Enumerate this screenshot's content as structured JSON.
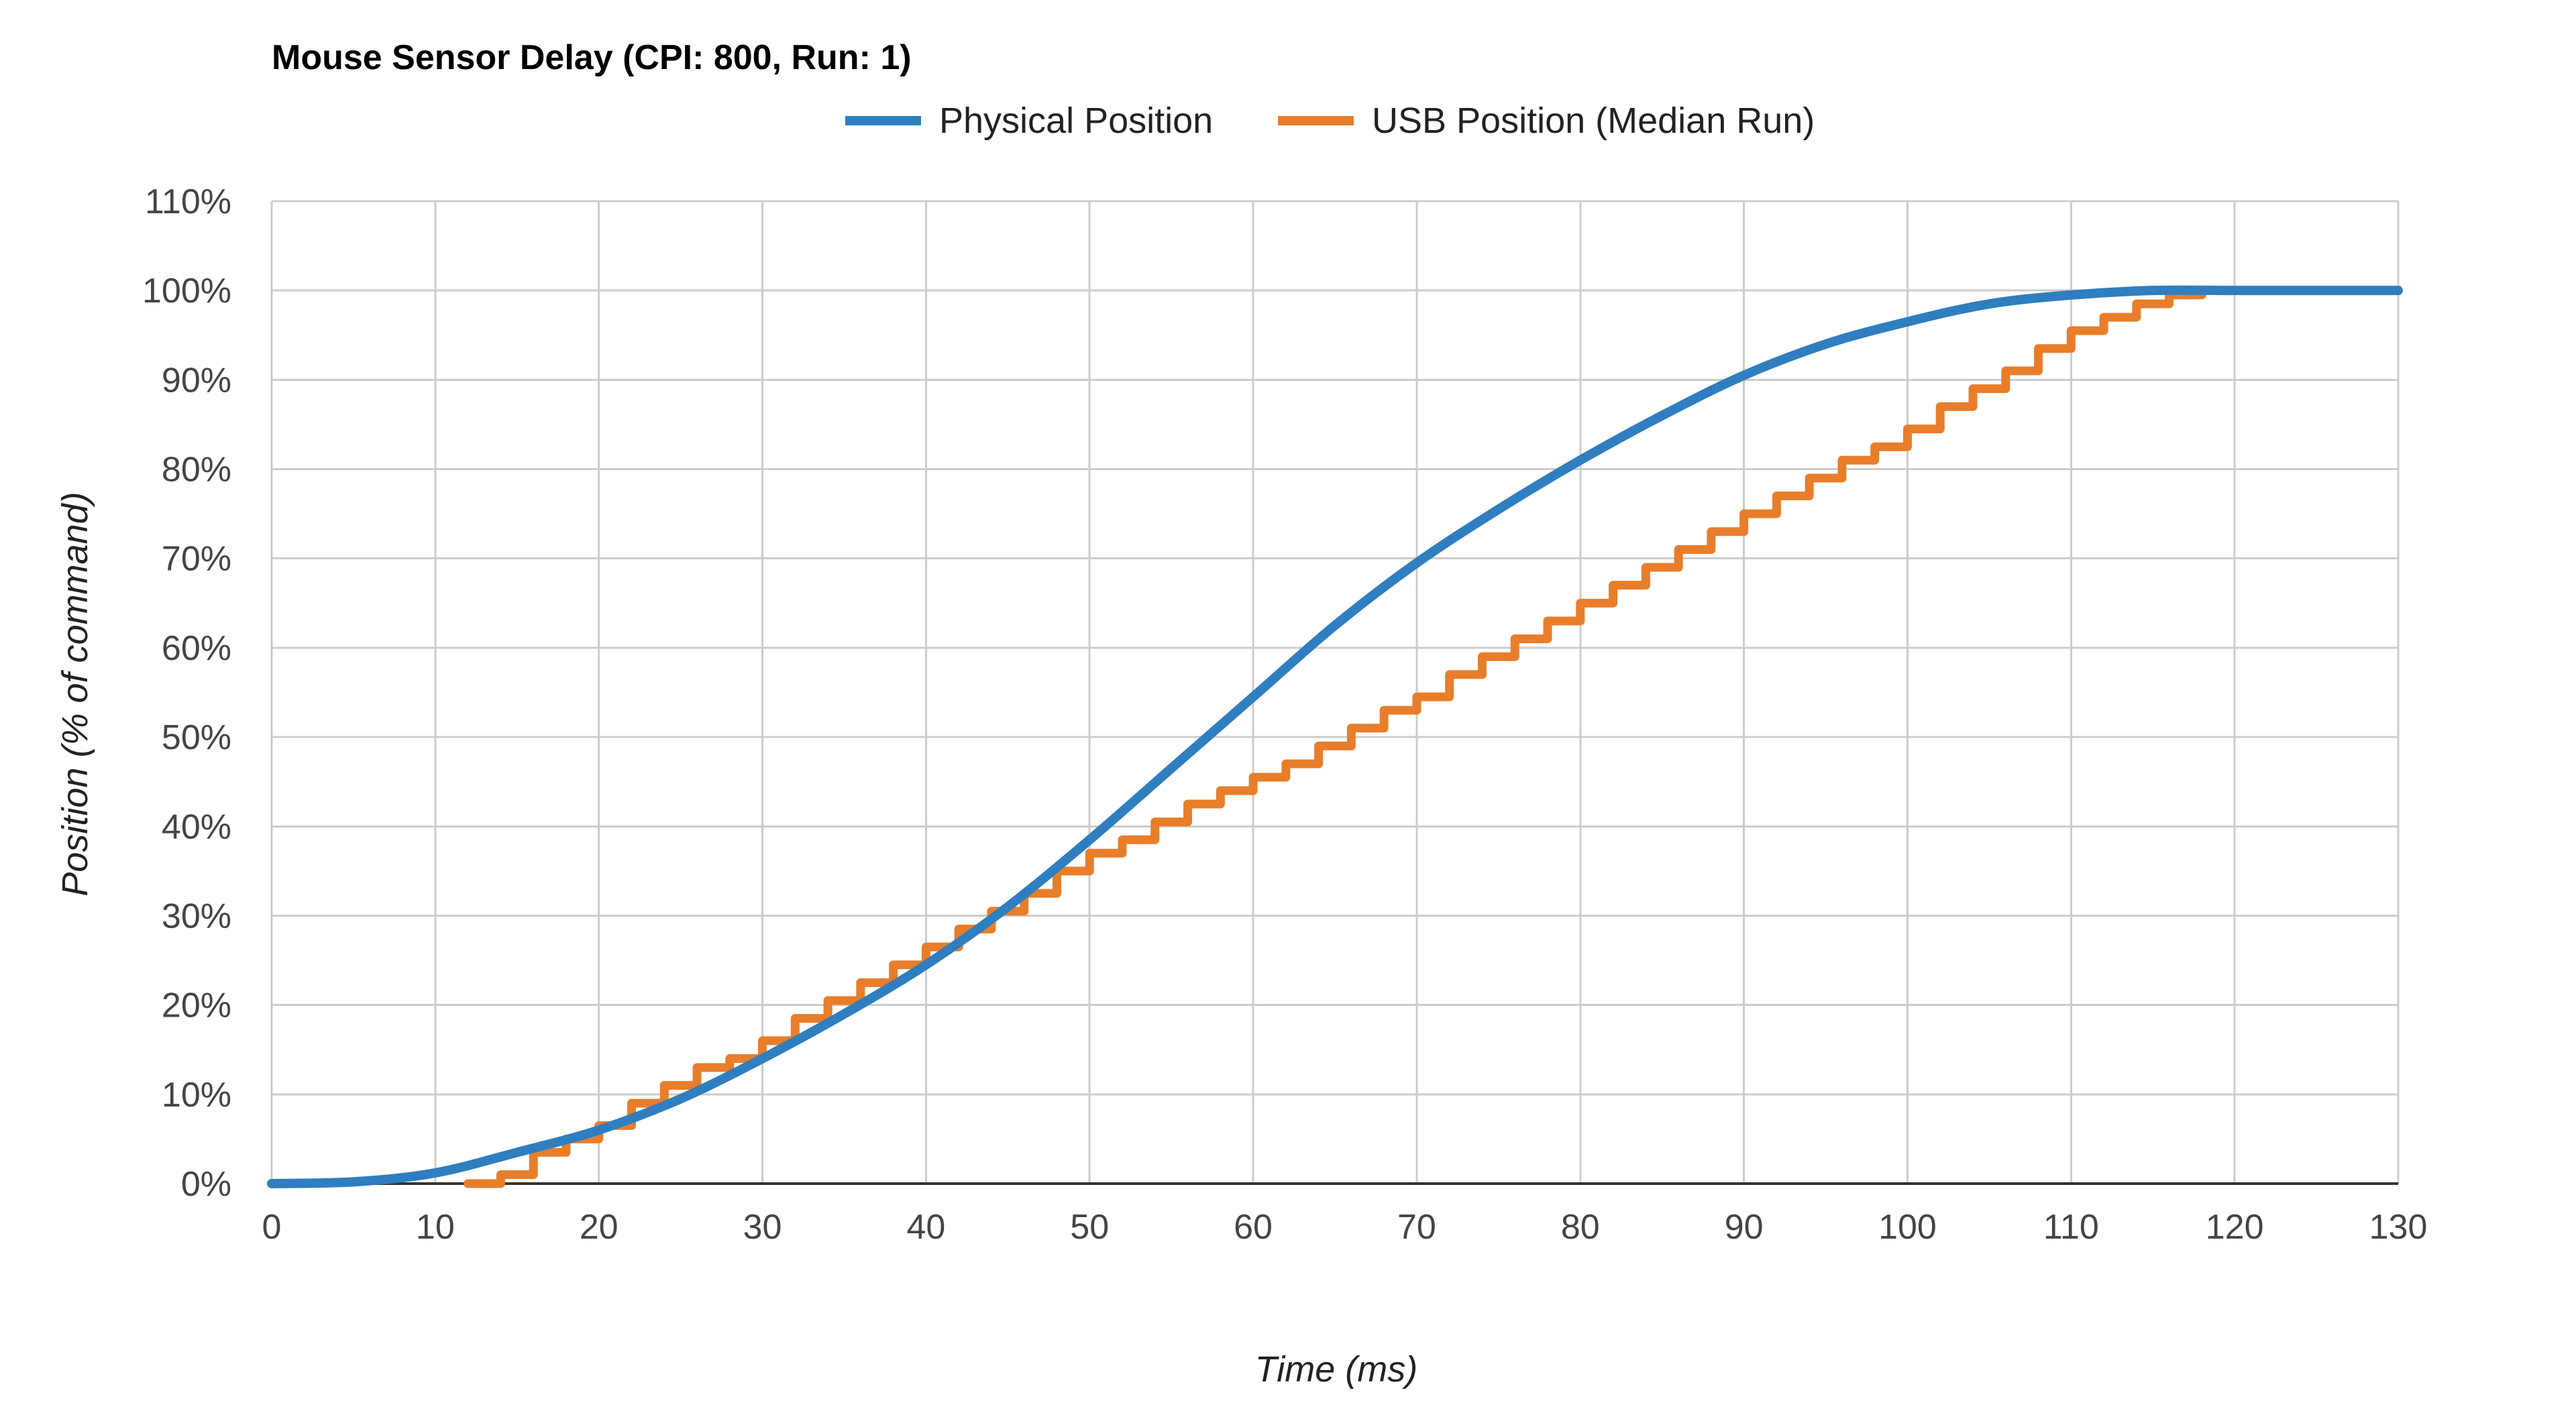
{
  "chart_data": {
    "type": "line",
    "title": "Mouse Sensor Delay (CPI: 800, Run: 1)",
    "xlabel": "Time (ms)",
    "ylabel": "Position (% of command)",
    "xlim": [
      0,
      130
    ],
    "ylim": [
      0,
      110
    ],
    "x_ticks": [
      "0",
      "10",
      "20",
      "30",
      "40",
      "50",
      "60",
      "70",
      "80",
      "90",
      "100",
      "110",
      "120",
      "130"
    ],
    "y_ticks": [
      "0%",
      "10%",
      "20%",
      "30%",
      "40%",
      "50%",
      "60%",
      "70%",
      "80%",
      "90%",
      "100%",
      "110%"
    ],
    "grid": true,
    "legend_position": "top",
    "series": [
      {
        "name": "Physical Position",
        "color": "#2f7ebf",
        "style": "smooth",
        "x": [
          0,
          5,
          10,
          15,
          20,
          25,
          30,
          35,
          40,
          45,
          50,
          55,
          60,
          65,
          70,
          75,
          80,
          85,
          90,
          95,
          100,
          105,
          110,
          115,
          120,
          125,
          130
        ],
        "y": [
          0,
          0.2,
          1.2,
          3.5,
          6,
          9.5,
          14,
          19,
          24.5,
          31,
          38.5,
          46.5,
          54.5,
          62.5,
          69.5,
          75.5,
          81,
          86,
          90.5,
          94,
          96.5,
          98.5,
          99.5,
          100,
          100,
          100,
          100
        ]
      },
      {
        "name": "USB Position (Median Run)",
        "color": "#e87d2a",
        "style": "step",
        "x": [
          12,
          14,
          16,
          18,
          20,
          22,
          24,
          26,
          28,
          30,
          32,
          34,
          36,
          38,
          40,
          42,
          44,
          46,
          48,
          50,
          52,
          54,
          56,
          58,
          60,
          62,
          64,
          66,
          68,
          70,
          72,
          74,
          76,
          78,
          80,
          82,
          84,
          86,
          88,
          90,
          92,
          94,
          96,
          98,
          100,
          102,
          104,
          106,
          108,
          110,
          112,
          114,
          116,
          118
        ],
        "y": [
          0,
          1,
          3.5,
          5,
          6.5,
          9,
          11,
          13,
          14,
          16,
          18.5,
          20.5,
          22.5,
          24.5,
          26.5,
          28.5,
          30.5,
          32.5,
          35,
          37,
          38.5,
          40.5,
          42.5,
          44,
          45.5,
          47,
          49,
          51,
          53,
          54.5,
          57,
          59,
          61,
          63,
          65,
          67,
          69,
          71,
          73,
          75,
          77,
          79,
          81,
          82.5,
          84.5,
          87,
          89,
          91,
          93.5,
          95.5,
          97,
          98.5,
          99.5,
          100
        ]
      }
    ]
  }
}
